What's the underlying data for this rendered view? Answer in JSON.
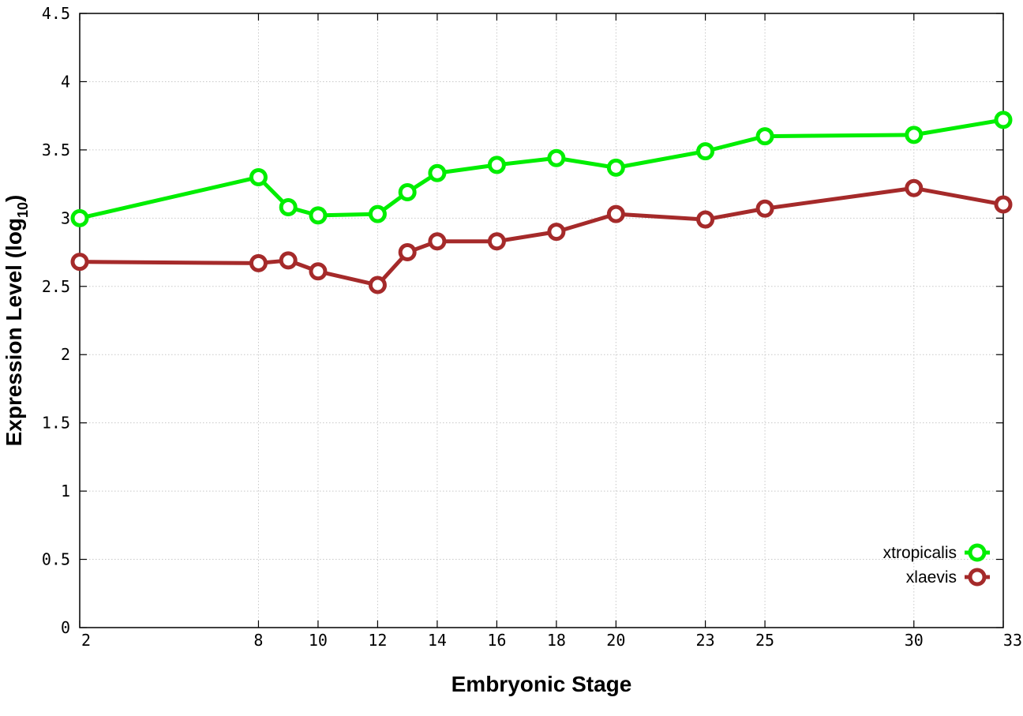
{
  "chart_data": {
    "type": "line",
    "xlabel": "Embryonic Stage",
    "ylabel_main": "Expression Level (log",
    "ylabel_sub": "10",
    "ylabel_close": ")",
    "x": [
      2,
      8,
      9,
      10,
      12,
      13,
      14,
      16,
      18,
      20,
      23,
      25,
      30,
      33
    ],
    "x_tick_labels": [
      "2",
      "8",
      "10",
      "12",
      "14",
      "16",
      "18",
      "20",
      "23",
      "25",
      "30",
      "33"
    ],
    "y_ticks": [
      "0",
      "0.5",
      "1",
      "1.5",
      "2",
      "2.5",
      "3",
      "3.5",
      "4",
      "4.5"
    ],
    "xlim": [
      2,
      33
    ],
    "ylim": [
      0,
      4.5
    ],
    "grid": true,
    "legend_position": "bottom-right",
    "series": [
      {
        "name": "xtropicalis",
        "color": "#00ee00",
        "values": [
          3.0,
          3.3,
          3.08,
          3.02,
          3.03,
          3.19,
          3.33,
          3.39,
          3.44,
          3.37,
          3.49,
          3.6,
          3.61,
          3.72
        ]
      },
      {
        "name": "xlaevis",
        "color": "#a52a2a",
        "values": [
          2.68,
          2.67,
          2.69,
          2.61,
          2.51,
          2.75,
          2.83,
          2.83,
          2.9,
          3.03,
          2.99,
          3.07,
          3.22,
          3.1
        ]
      }
    ]
  }
}
